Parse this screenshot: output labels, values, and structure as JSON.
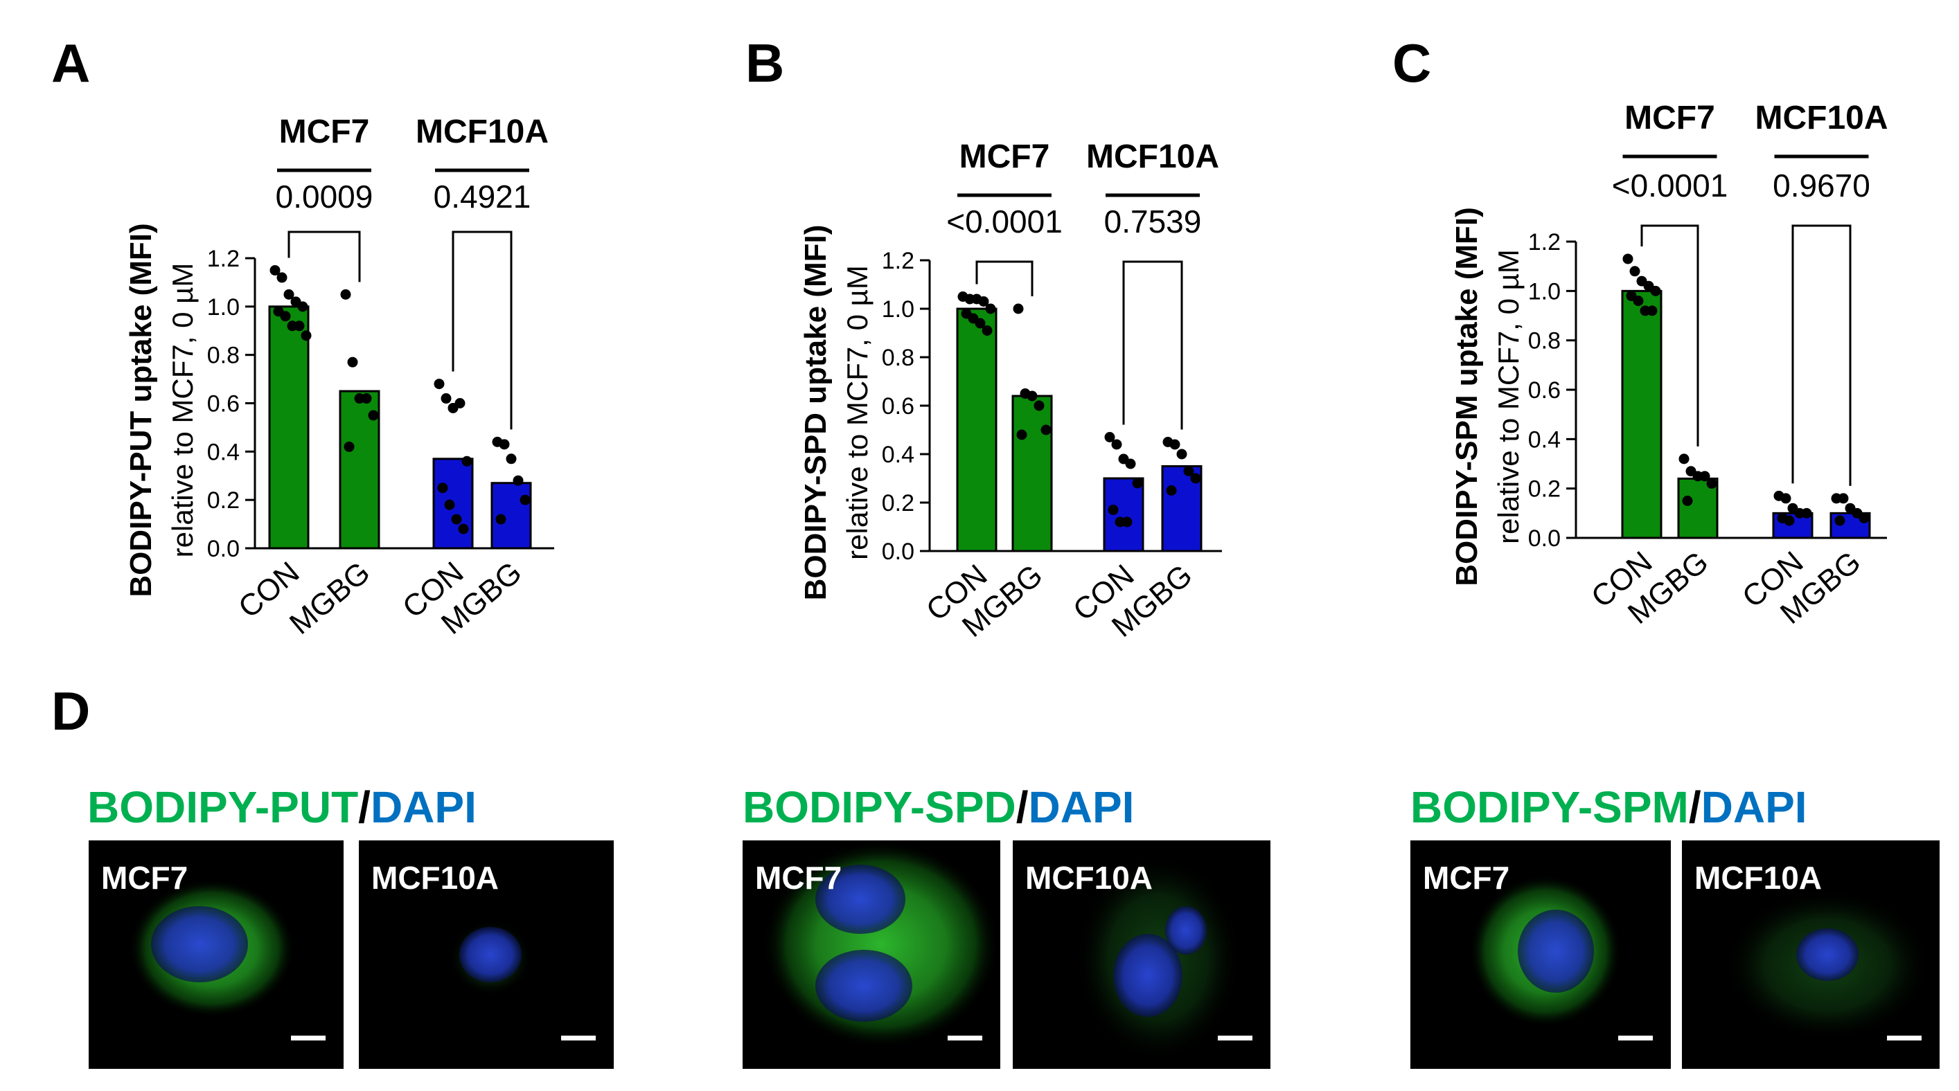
{
  "panels": [
    {
      "letter": "A"
    },
    {
      "letter": "B"
    },
    {
      "letter": "C"
    },
    {
      "letter": "D"
    }
  ],
  "chart_data": [
    {
      "type": "bar",
      "panel": "A",
      "title": "",
      "ylabel": "BODIPY-PUT uptake (MFI)",
      "ylabel2": "relative to MCF7, 0 µM",
      "ylim": [
        0,
        1.2
      ],
      "yticks": [
        0.0,
        0.2,
        0.4,
        0.6,
        0.8,
        1.0,
        1.2
      ],
      "ytick_labels": [
        "0.0",
        "0.2",
        "0.4",
        "0.6",
        "0.8",
        "1.0",
        "1.2"
      ],
      "groups": [
        {
          "label": "MCF7",
          "pvalue": "0.0009",
          "color": "#0a8a0a",
          "categories": [
            "CON",
            "MGBG"
          ],
          "values": [
            1.0,
            0.65
          ],
          "points": [
            [
              1.15,
              1.12,
              1.05,
              1.02,
              1.0,
              0.98,
              0.96,
              0.92,
              0.92,
              0.88
            ],
            [
              1.05,
              0.77,
              0.62,
              0.62,
              0.55,
              0.42
            ]
          ]
        },
        {
          "label": "MCF10A",
          "pvalue": "0.4921",
          "color": "#0b10d0",
          "categories": [
            "CON",
            "MGBG"
          ],
          "values": [
            0.37,
            0.27
          ],
          "points": [
            [
              0.68,
              0.62,
              0.58,
              0.6,
              0.36,
              0.25,
              0.18,
              0.12,
              0.08
            ],
            [
              0.44,
              0.43,
              0.37,
              0.28,
              0.2,
              0.12
            ]
          ]
        }
      ]
    },
    {
      "type": "bar",
      "panel": "B",
      "title": "",
      "ylabel": "BODIPY-SPD uptake (MFI)",
      "ylabel2": "relative to MCF7, 0 µM",
      "ylim": [
        0,
        1.2
      ],
      "yticks": [
        0.0,
        0.2,
        0.4,
        0.6,
        0.8,
        1.0,
        1.2
      ],
      "ytick_labels": [
        "0.0",
        "0.2",
        "0.4",
        "0.6",
        "0.8",
        "1.0",
        "1.2"
      ],
      "groups": [
        {
          "label": "MCF7",
          "pvalue": "<0.0001",
          "color": "#0a8a0a",
          "categories": [
            "CON",
            "MGBG"
          ],
          "values": [
            1.0,
            0.64
          ],
          "points": [
            [
              1.05,
              1.04,
              1.04,
              1.03,
              1.0,
              0.98,
              0.96,
              0.94,
              0.91
            ],
            [
              1.0,
              0.65,
              0.64,
              0.6,
              0.5,
              0.48
            ]
          ]
        },
        {
          "label": "MCF10A",
          "pvalue": "0.7539",
          "color": "#0b10d0",
          "categories": [
            "CON",
            "MGBG"
          ],
          "values": [
            0.3,
            0.35
          ],
          "points": [
            [
              0.47,
              0.44,
              0.38,
              0.36,
              0.28,
              0.17,
              0.12,
              0.12
            ],
            [
              0.45,
              0.44,
              0.4,
              0.33,
              0.3,
              0.25
            ]
          ]
        }
      ]
    },
    {
      "type": "bar",
      "panel": "C",
      "title": "",
      "ylabel": "BODIPY-SPM uptake (MFI)",
      "ylabel2": "relative to MCF7, 0 µM",
      "ylim": [
        0,
        1.2
      ],
      "yticks": [
        0.0,
        0.2,
        0.4,
        0.6,
        0.8,
        1.0,
        1.2
      ],
      "ytick_labels": [
        "0.0",
        "0.2",
        "0.4",
        "0.6",
        "0.8",
        "1.0",
        "1.2"
      ],
      "groups": [
        {
          "label": "MCF7",
          "pvalue": "<0.0001",
          "color": "#0a8a0a",
          "categories": [
            "CON",
            "MGBG"
          ],
          "values": [
            1.0,
            0.24
          ],
          "points": [
            [
              1.13,
              1.08,
              1.04,
              1.02,
              1.0,
              0.98,
              0.96,
              0.92,
              0.92
            ],
            [
              0.32,
              0.27,
              0.25,
              0.25,
              0.22,
              0.15
            ]
          ]
        },
        {
          "label": "MCF10A",
          "pvalue": "0.9670",
          "color": "#0b10d0",
          "categories": [
            "CON",
            "MGBG"
          ],
          "values": [
            0.1,
            0.1
          ],
          "points": [
            [
              0.17,
              0.16,
              0.12,
              0.1,
              0.1,
              0.08,
              0.07
            ],
            [
              0.16,
              0.16,
              0.12,
              0.1,
              0.08,
              0.07
            ]
          ]
        }
      ]
    }
  ],
  "images": [
    {
      "dye": "BODIPY-PUT",
      "slash": "/",
      "counter": "DAPI",
      "tiles": [
        {
          "label": "MCF7",
          "signal": "strong"
        },
        {
          "label": "MCF10A",
          "signal": "weak"
        }
      ]
    },
    {
      "dye": "BODIPY-SPD",
      "slash": "/",
      "counter": "DAPI",
      "tiles": [
        {
          "label": "MCF7",
          "signal": "strong"
        },
        {
          "label": "MCF10A",
          "signal": "weak"
        }
      ]
    },
    {
      "dye": "BODIPY-SPM",
      "slash": "/",
      "counter": "DAPI",
      "tiles": [
        {
          "label": "MCF7",
          "signal": "strong"
        },
        {
          "label": "MCF10A",
          "signal": "weak"
        }
      ]
    }
  ],
  "colors": {
    "mcf7_bar": "#0a8a0a",
    "mcf10a_bar": "#0b10d0",
    "dye_text": "#00b050",
    "dapi_text": "#0070c0"
  }
}
